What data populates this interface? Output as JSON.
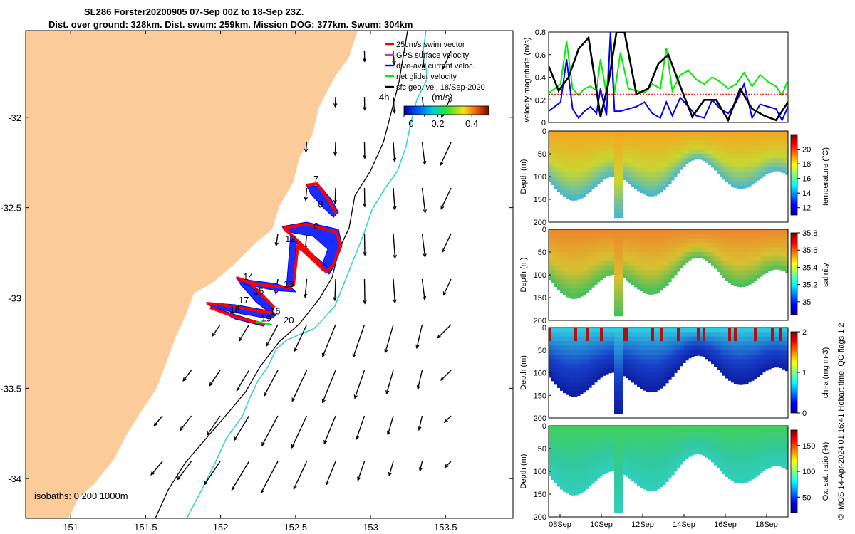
{
  "title": {
    "line1": "SL286 Forster20200905 07-Sep 00Z to 18-Sep 23Z.",
    "line2": "Dist. over ground: 328km. Dist. swum: 259km. Mission DOG: 377km. Swum: 304km"
  },
  "credit": "© IMOS 14-Apr-2024 01:16:41 Hobart time. QC flags 1  2",
  "colors": {
    "land": "#fbcc99",
    "isobath200": "#000000",
    "isobath1000": "#25d5d5",
    "swim": "#ff0000",
    "gps": "#cc33cc",
    "current": "#0000ff",
    "net": "#00ee00",
    "geo": "#000000"
  },
  "chart_data": [
    {
      "type": "scatter",
      "panel": "map",
      "x_ticks": [
        "151",
        "151.5",
        "152",
        "152.5",
        "153",
        "153.5"
      ],
      "y_ticks": [
        "-32",
        "-32.5",
        "-33",
        "-33.5",
        "-34"
      ],
      "xlim": [
        150.7,
        153.95
      ],
      "ylim": [
        -34.22,
        -31.52
      ],
      "legend": {
        "items": [
          {
            "label": "25cm/s swim vector",
            "color": "#ff0000",
            "key": "swim"
          },
          {
            "label": "GPS surface velocity",
            "color": "#cc33cc",
            "key": "gps"
          },
          {
            "label": "dive-avg current veloc.",
            "color": "#0000ff",
            "key": "current"
          },
          {
            "label": "net glider velocity",
            "color": "#00ee00",
            "key": "net"
          },
          {
            "label": "sfc geo. vel. 18/Sep-2020",
            "color": "#000000",
            "key": "geo"
          }
        ],
        "placement": "top-right"
      },
      "colorbar": {
        "label": "(m/s)",
        "ticks": [
          "0",
          "0.2",
          "0.4"
        ],
        "range": [
          0,
          0.5
        ]
      },
      "hour_label": "4h",
      "isobaths_label": "isobaths: 0   200  1000m",
      "waypoints": [
        {
          "label": "7",
          "lon": 152.62,
          "lat": -32.36
        },
        {
          "label": "8",
          "lon": 152.65,
          "lat": -32.5
        },
        {
          "label": "0",
          "lon": 152.62,
          "lat": -32.62
        },
        {
          "label": "12",
          "lon": 152.43,
          "lat": -32.69
        },
        {
          "label": "13",
          "lon": 152.42,
          "lat": -32.94
        },
        {
          "label": "14",
          "lon": 152.15,
          "lat": -32.9
        },
        {
          "label": "15",
          "lon": 152.22,
          "lat": -32.98
        },
        {
          "label": "17",
          "lon": 152.12,
          "lat": -33.03
        },
        {
          "label": "16",
          "lon": 152.33,
          "lat": -33.09
        },
        {
          "label": "18",
          "lon": 152.06,
          "lat": -33.08
        },
        {
          "label": "19",
          "lon": 152.27,
          "lat": -33.13
        },
        {
          "label": "20",
          "lon": 152.42,
          "lat": -33.14
        }
      ]
    },
    {
      "type": "line",
      "panel": "velocity",
      "ylabel": "velocity magnitude (m/s)",
      "ylim": [
        0,
        0.8
      ],
      "y_ticks": [
        "0",
        "0.2",
        "0.4",
        "0.6",
        "0.8"
      ],
      "xlim": [
        0,
        12
      ],
      "series": [
        {
          "key": "net",
          "color": "#00ee00",
          "x": [
            0,
            0.3,
            0.6,
            0.9,
            1.2,
            1.5,
            1.8,
            2.1,
            2.4,
            2.6,
            2.9,
            3.1,
            3.3,
            3.6,
            4,
            4.4,
            4.8,
            5.2,
            5.6,
            5.9,
            6.2,
            6.6,
            7,
            7.4,
            7.8,
            8.2,
            8.6,
            9,
            9.4,
            9.8,
            10.2,
            10.6,
            11,
            11.4,
            11.7,
            12
          ],
          "y": [
            0.26,
            0.3,
            0.34,
            0.72,
            0.3,
            0.24,
            0.3,
            0.32,
            0.28,
            0.56,
            0.25,
            0.73,
            0.26,
            0.62,
            0.3,
            0.28,
            0.26,
            0.34,
            0.3,
            0.66,
            0.28,
            0.42,
            0.46,
            0.38,
            0.34,
            0.4,
            0.36,
            0.3,
            0.34,
            0.44,
            0.32,
            0.42,
            0.36,
            0.32,
            0.24,
            0.38
          ]
        },
        {
          "key": "swim",
          "color": "#ff0000",
          "x": [
            0,
            1,
            2,
            3,
            4,
            5,
            6,
            7,
            8,
            9,
            10,
            11,
            12
          ],
          "y": [
            0.25,
            0.25,
            0.25,
            0.25,
            0.25,
            0.25,
            0.25,
            0.25,
            0.25,
            0.25,
            0.25,
            0.25,
            0.25
          ]
        },
        {
          "key": "current",
          "color": "#0000ff",
          "x": [
            0,
            0.3,
            0.6,
            0.9,
            1.2,
            1.5,
            1.8,
            2.1,
            2.4,
            2.6,
            2.9,
            3.1,
            3.3,
            3.6,
            4,
            4.4,
            4.8,
            5.2,
            5.6,
            5.9,
            6.2,
            6.6,
            7,
            7.4,
            7.8,
            8.2,
            8.6,
            9,
            9.4,
            9.8,
            10.2,
            10.6,
            11,
            11.4,
            11.7,
            12
          ],
          "y": [
            0.1,
            0.14,
            0.18,
            0.56,
            0.12,
            0.04,
            0.1,
            0.14,
            0.08,
            0.3,
            0.06,
            0.8,
            0.1,
            0.1,
            0.12,
            0.14,
            0.18,
            0.08,
            0.04,
            0.18,
            0.06,
            0.22,
            0.14,
            0.06,
            0.04,
            0.2,
            0.12,
            0.08,
            0.18,
            0.34,
            0.04,
            0.16,
            0.14,
            0.12,
            0.02,
            0.14
          ]
        },
        {
          "key": "geo",
          "color": "#000000",
          "x": [
            0,
            0.5,
            1,
            1.5,
            2,
            2.6,
            3,
            3.4,
            3.8,
            4.4,
            5,
            5.5,
            6,
            6.6,
            7.2,
            7.8,
            8.4,
            9,
            9.6,
            10.2,
            10.8,
            11.4,
            12
          ],
          "y": [
            0.5,
            0.28,
            0.4,
            0.65,
            0.75,
            0.05,
            0.35,
            0.8,
            0.8,
            0.25,
            0.3,
            0.52,
            0.6,
            0.32,
            0.05,
            0.2,
            0.2,
            0.02,
            0.3,
            0.12,
            0.06,
            0.02,
            0.18
          ]
        }
      ]
    },
    {
      "type": "heatmap",
      "panel": "temperature",
      "ylabel": "Depth (m)",
      "cbar_label": "temperature (°C)",
      "ylim": [
        200,
        0
      ],
      "y_ticks": [
        "0",
        "50",
        "100",
        "150",
        "200"
      ],
      "cbar_ticks": [
        "12",
        "14",
        "16",
        "18",
        "20"
      ],
      "clim": [
        11,
        22
      ]
    },
    {
      "type": "heatmap",
      "panel": "salinity",
      "ylabel": "Depth (m)",
      "cbar_label": "salinity",
      "ylim": [
        200,
        0
      ],
      "y_ticks": [
        "0",
        "50",
        "100",
        "150",
        "200"
      ],
      "cbar_ticks": [
        "35",
        "35.2",
        "35.4",
        "35.6",
        "35.8"
      ],
      "clim": [
        34.85,
        35.8
      ]
    },
    {
      "type": "heatmap",
      "panel": "chla",
      "ylabel": "Depth (m)",
      "cbar_label": "chl-a (mg m-3)",
      "ylim": [
        200,
        0
      ],
      "y_ticks": [
        "0",
        "50",
        "100",
        "150",
        "200"
      ],
      "cbar_ticks": [
        "0",
        "1",
        "2"
      ],
      "clim": [
        0,
        2
      ]
    },
    {
      "type": "heatmap",
      "panel": "oxygen",
      "ylabel": "Depth (m)",
      "cbar_label": "Ox. sat. ratio (%)",
      "ylim": [
        200,
        0
      ],
      "y_ticks": [
        "0",
        "50",
        "100",
        "150",
        "200"
      ],
      "cbar_ticks": [
        "50",
        "100",
        "150"
      ],
      "clim": [
        20,
        180
      ],
      "x_ticks": [
        "08Sep",
        "10Sep",
        "12Sep",
        "14Sep",
        "16Sep",
        "18Sep"
      ]
    }
  ]
}
